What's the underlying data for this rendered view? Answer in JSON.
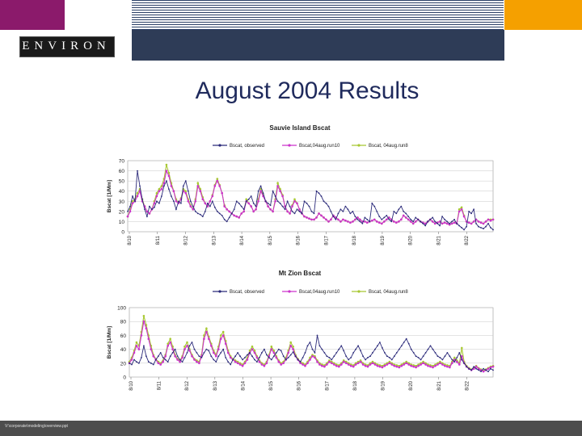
{
  "header": {
    "logo_text": "ENVIRON"
  },
  "slide": {
    "title": "August 2004 Results"
  },
  "footer": {
    "path": "V:\\corporate\\modeling\\overview.ppt"
  },
  "colors": {
    "observed": "#2b2a7a",
    "run10": "#cc33cc",
    "run8": "#a8c832",
    "purple": "#8b1a6b",
    "orange": "#f5a000",
    "navy": "#2e3c57"
  },
  "chart_data": [
    {
      "type": "line",
      "title": "Sauvie Island Bscat",
      "ylabel": "Bscat [1/Mm]",
      "ylim": [
        0,
        70
      ],
      "yticks": [
        0,
        10,
        20,
        30,
        40,
        50,
        60,
        70
      ],
      "x_tick_labels": [
        "8/10",
        "8/11",
        "8/12",
        "8/13",
        "8/14",
        "8/15",
        "8/16",
        "8/17",
        "8/18",
        "8/19",
        "8/20",
        "8/21",
        "8/22"
      ],
      "grid": true,
      "legend_position": "top",
      "series": [
        {
          "name": "Bscat, observed",
          "color": "#2b2a7a",
          "values": [
            20,
            25,
            35,
            30,
            60,
            45,
            32,
            22,
            15,
            25,
            22,
            24,
            30,
            28,
            35,
            45,
            50,
            42,
            35,
            30,
            22,
            30,
            28,
            45,
            50,
            40,
            30,
            25,
            20,
            18,
            17,
            15,
            20,
            28,
            25,
            30,
            24,
            20,
            18,
            16,
            12,
            10,
            14,
            18,
            22,
            30,
            28,
            25,
            22,
            30,
            32,
            35,
            28,
            25,
            40,
            45,
            38,
            30,
            28,
            26,
            40,
            35,
            30,
            28,
            25,
            22,
            30,
            25,
            20,
            18,
            22,
            20,
            18,
            30,
            28,
            25,
            20,
            18,
            40,
            38,
            35,
            30,
            28,
            25,
            20,
            15,
            12,
            18,
            22,
            20,
            25,
            22,
            18,
            20,
            15,
            12,
            10,
            8,
            14,
            12,
            10,
            28,
            25,
            20,
            15,
            12,
            14,
            16,
            12,
            10,
            20,
            18,
            22,
            25,
            20,
            18,
            15,
            12,
            10,
            14,
            12,
            10,
            8,
            6,
            10,
            12,
            14,
            10,
            8,
            6,
            15,
            12,
            10,
            8,
            10,
            12,
            8,
            6,
            4,
            2,
            5,
            20,
            18,
            22,
            8,
            5,
            4,
            3,
            5,
            8,
            4,
            2
          ]
        },
        {
          "name": "Bscat,04aug.run10",
          "color": "#cc33cc",
          "values": [
            15,
            20,
            28,
            30,
            35,
            40,
            30,
            25,
            20,
            18,
            22,
            28,
            35,
            40,
            42,
            48,
            60,
            55,
            45,
            40,
            30,
            28,
            32,
            40,
            38,
            30,
            25,
            22,
            30,
            45,
            40,
            32,
            28,
            25,
            30,
            35,
            45,
            50,
            45,
            38,
            25,
            22,
            20,
            18,
            16,
            15,
            14,
            18,
            20,
            30,
            28,
            25,
            20,
            22,
            30,
            40,
            35,
            30,
            25,
            22,
            20,
            30,
            45,
            40,
            35,
            25,
            20,
            18,
            25,
            30,
            28,
            22,
            18,
            15,
            14,
            13,
            12,
            12,
            14,
            18,
            16,
            14,
            12,
            10,
            12,
            16,
            14,
            12,
            10,
            12,
            11,
            10,
            9,
            10,
            12,
            14,
            12,
            10,
            10,
            9,
            10,
            11,
            12,
            10,
            9,
            8,
            10,
            12,
            14,
            12,
            10,
            9,
            10,
            12,
            16,
            14,
            12,
            10,
            8,
            10,
            12,
            10,
            9,
            8,
            10,
            12,
            10,
            8,
            9,
            10,
            8,
            9,
            8,
            7,
            8,
            9,
            8,
            20,
            22,
            15,
            10,
            9,
            8,
            10,
            12,
            10,
            9,
            8,
            10,
            12,
            11,
            12
          ]
        },
        {
          "name": "Bscat, 04aug.run8",
          "color": "#a8c832",
          "values": [
            15,
            22,
            30,
            32,
            38,
            42,
            32,
            25,
            20,
            18,
            22,
            30,
            38,
            42,
            45,
            52,
            66,
            58,
            48,
            40,
            32,
            28,
            33,
            42,
            40,
            32,
            26,
            22,
            32,
            48,
            42,
            34,
            28,
            25,
            30,
            36,
            46,
            52,
            46,
            38,
            26,
            22,
            20,
            18,
            16,
            15,
            14,
            18,
            20,
            32,
            28,
            25,
            20,
            22,
            32,
            42,
            36,
            30,
            25,
            22,
            20,
            32,
            48,
            42,
            36,
            25,
            20,
            18,
            26,
            32,
            28,
            22,
            18,
            15,
            14,
            13,
            12,
            12,
            14,
            18,
            16,
            14,
            12,
            10,
            12,
            16,
            14,
            12,
            10,
            12,
            11,
            10,
            9,
            10,
            12,
            14,
            12,
            10,
            10,
            9,
            10,
            11,
            12,
            10,
            9,
            8,
            10,
            12,
            14,
            12,
            10,
            9,
            10,
            12,
            16,
            14,
            12,
            10,
            8,
            10,
            12,
            10,
            9,
            8,
            10,
            12,
            10,
            8,
            9,
            10,
            8,
            9,
            8,
            7,
            8,
            9,
            8,
            22,
            24,
            16,
            10,
            9,
            8,
            10,
            12,
            10,
            9,
            8,
            10,
            12,
            12,
            12
          ]
        }
      ]
    },
    {
      "type": "line",
      "title": "Mt Zion Bscat",
      "ylabel": "Bscat [1/Mm]",
      "ylim": [
        0,
        100
      ],
      "yticks": [
        0,
        20,
        40,
        60,
        80,
        100
      ],
      "x_tick_labels": [
        "8/10",
        "8/11",
        "8/12",
        "8/13",
        "8/14",
        "8/15",
        "8/16",
        "8/17",
        "8/18",
        "8/19",
        "8/20",
        "8/21",
        "8/22"
      ],
      "grid": true,
      "legend_position": "top",
      "series": [
        {
          "name": "Bscat, observed",
          "color": "#2b2a7a",
          "values": [
            20,
            18,
            25,
            22,
            20,
            28,
            45,
            30,
            22,
            20,
            18,
            25,
            30,
            35,
            28,
            25,
            22,
            30,
            35,
            40,
            30,
            25,
            22,
            28,
            35,
            45,
            50,
            40,
            35,
            30,
            28,
            35,
            40,
            38,
            30,
            25,
            22,
            30,
            35,
            40,
            28,
            22,
            18,
            25,
            30,
            35,
            30,
            25,
            28,
            32,
            35,
            30,
            25,
            22,
            28,
            35,
            40,
            32,
            28,
            25,
            30,
            35,
            40,
            38,
            30,
            25,
            28,
            32,
            36,
            30,
            25,
            22,
            28,
            35,
            45,
            50,
            40,
            35,
            60,
            45,
            40,
            35,
            30,
            28,
            25,
            30,
            35,
            40,
            45,
            38,
            30,
            25,
            28,
            35,
            40,
            45,
            38,
            30,
            25,
            28,
            30,
            35,
            40,
            45,
            50,
            42,
            35,
            30,
            28,
            25,
            30,
            35,
            40,
            45,
            50,
            55,
            48,
            40,
            35,
            30,
            28,
            25,
            30,
            35,
            40,
            45,
            40,
            35,
            30,
            28,
            25,
            30,
            35,
            30,
            25,
            22,
            28,
            35,
            25,
            20,
            15,
            12,
            10,
            15,
            12,
            10,
            8,
            12,
            10,
            8,
            12,
            10
          ]
        },
        {
          "name": "Bscat,04aug.run10",
          "color": "#cc33cc",
          "values": [
            20,
            25,
            35,
            45,
            40,
            60,
            80,
            70,
            55,
            40,
            30,
            25,
            20,
            18,
            22,
            30,
            45,
            50,
            40,
            30,
            25,
            22,
            28,
            40,
            45,
            38,
            30,
            25,
            22,
            20,
            30,
            55,
            65,
            55,
            45,
            35,
            30,
            40,
            55,
            60,
            48,
            35,
            28,
            25,
            22,
            20,
            18,
            16,
            20,
            25,
            35,
            40,
            35,
            28,
            22,
            18,
            16,
            20,
            30,
            40,
            35,
            28,
            22,
            18,
            20,
            25,
            35,
            45,
            40,
            30,
            25,
            20,
            18,
            16,
            20,
            25,
            30,
            28,
            22,
            18,
            16,
            15,
            18,
            22,
            20,
            18,
            16,
            15,
            18,
            22,
            20,
            18,
            16,
            15,
            18,
            20,
            22,
            18,
            16,
            15,
            18,
            20,
            18,
            16,
            15,
            14,
            16,
            18,
            20,
            18,
            16,
            15,
            14,
            16,
            18,
            20,
            18,
            16,
            15,
            14,
            16,
            18,
            20,
            18,
            16,
            15,
            14,
            16,
            18,
            20,
            18,
            16,
            15,
            14,
            20,
            25,
            22,
            18,
            30,
            20,
            15,
            12,
            10,
            12,
            15,
            12,
            10,
            8,
            10,
            12,
            14,
            15
          ]
        },
        {
          "name": "Bscat, 04aug.run8",
          "color": "#a8c832",
          "values": [
            22,
            28,
            38,
            50,
            45,
            65,
            88,
            75,
            60,
            45,
            32,
            26,
            22,
            20,
            24,
            32,
            48,
            55,
            44,
            32,
            26,
            24,
            30,
            44,
            50,
            40,
            32,
            26,
            24,
            22,
            32,
            60,
            70,
            58,
            48,
            38,
            32,
            44,
            60,
            65,
            52,
            38,
            30,
            26,
            24,
            22,
            20,
            18,
            22,
            28,
            38,
            44,
            38,
            30,
            24,
            20,
            18,
            22,
            32,
            44,
            38,
            30,
            24,
            20,
            22,
            28,
            38,
            50,
            44,
            32,
            26,
            22,
            20,
            18,
            22,
            28,
            32,
            30,
            24,
            20,
            18,
            17,
            20,
            24,
            22,
            20,
            18,
            17,
            20,
            24,
            22,
            20,
            18,
            17,
            20,
            22,
            24,
            20,
            18,
            17,
            20,
            22,
            20,
            18,
            17,
            16,
            18,
            20,
            22,
            20,
            18,
            17,
            16,
            18,
            20,
            22,
            20,
            18,
            17,
            16,
            18,
            20,
            22,
            20,
            18,
            17,
            16,
            18,
            20,
            22,
            20,
            18,
            17,
            16,
            22,
            28,
            24,
            20,
            42,
            22,
            16,
            13,
            11,
            13,
            16,
            13,
            11,
            9,
            11,
            13,
            15,
            16
          ]
        }
      ]
    }
  ]
}
